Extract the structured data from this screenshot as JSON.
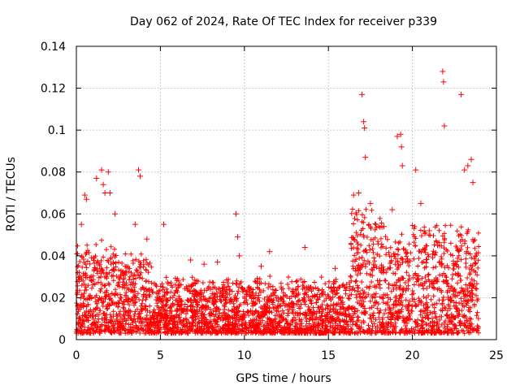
{
  "chart_data": {
    "type": "scatter",
    "title": "Day 062 of 2024, Rate Of TEC Index for receiver p339",
    "xlabel": "GPS time / hours",
    "ylabel": "ROTI / TECUs",
    "xlim": [
      0,
      25
    ],
    "ylim": [
      0,
      0.14
    ],
    "x_ticks": [
      0,
      5,
      10,
      15,
      20,
      25
    ],
    "y_ticks": [
      0,
      0.02,
      0.04,
      0.06,
      0.08,
      0.1,
      0.12,
      0.14
    ],
    "x_tick_labels": [
      "0",
      "5",
      "10",
      "15",
      "20",
      "25"
    ],
    "y_tick_labels": [
      "0",
      "0.02",
      "0.04",
      "0.06",
      "0.08",
      "0.1",
      "0.12",
      "0.14"
    ],
    "grid": true,
    "marker": "+",
    "color": "#ff0000",
    "series": [
      {
        "name": "ROTI",
        "x": [
          0.3,
          0.5,
          0.6,
          1.2,
          1.5,
          1.6,
          1.7,
          1.9,
          2.0,
          2.3,
          3.5,
          3.7,
          3.8,
          4.2,
          5.2,
          6.8,
          7.6,
          8.4,
          9.5,
          9.6,
          9.7,
          11.0,
          11.5,
          13.6,
          15.4,
          16.5,
          16.8,
          17.0,
          17.1,
          17.15,
          17.2,
          17.5,
          18.3,
          18.8,
          19.1,
          19.3,
          19.35,
          19.4,
          20.2,
          20.5,
          21.0,
          21.5,
          21.8,
          21.85,
          21.9,
          22.9,
          23.1,
          23.3,
          23.5,
          23.6
        ],
        "y": [
          0.055,
          0.069,
          0.067,
          0.077,
          0.081,
          0.074,
          0.07,
          0.08,
          0.07,
          0.06,
          0.055,
          0.081,
          0.078,
          0.048,
          0.055,
          0.038,
          0.036,
          0.037,
          0.06,
          0.049,
          0.04,
          0.035,
          0.042,
          0.044,
          0.034,
          0.069,
          0.07,
          0.117,
          0.104,
          0.101,
          0.087,
          0.065,
          0.054,
          0.062,
          0.097,
          0.098,
          0.092,
          0.083,
          0.081,
          0.065,
          0.052,
          0.045,
          0.128,
          0.123,
          0.102,
          0.117,
          0.081,
          0.083,
          0.086,
          0.075
        ]
      }
    ]
  }
}
